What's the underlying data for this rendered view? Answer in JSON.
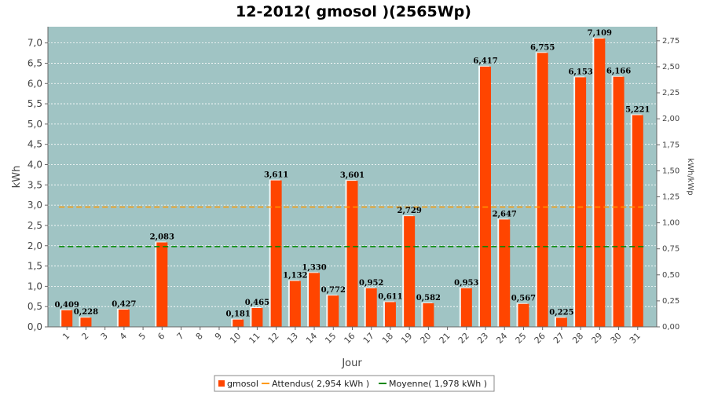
{
  "chart_data": {
    "type": "bar",
    "title": "12-2012( gmosol )(2565Wp)",
    "xlabel": "Jour",
    "ylabel": "kWh",
    "ylabel_right": "kWh/kWp",
    "categories": [
      "1",
      "2",
      "3",
      "4",
      "5",
      "6",
      "7",
      "8",
      "9",
      "10",
      "11",
      "12",
      "13",
      "14",
      "15",
      "16",
      "17",
      "18",
      "19",
      "20",
      "21",
      "22",
      "23",
      "24",
      "25",
      "26",
      "27",
      "28",
      "29",
      "30",
      "31"
    ],
    "series": [
      {
        "name": "gmosol",
        "color": "#ff4500",
        "values": [
          0.409,
          0.228,
          null,
          0.427,
          null,
          2.083,
          null,
          null,
          null,
          0.181,
          0.465,
          3.611,
          1.132,
          1.33,
          0.772,
          3.601,
          0.952,
          0.611,
          2.729,
          0.582,
          null,
          0.953,
          6.417,
          2.647,
          0.567,
          6.755,
          0.225,
          6.153,
          7.109,
          6.166,
          5.221
        ],
        "labels": [
          "0,409",
          "0,228",
          "",
          "0,427",
          "",
          "2,083",
          "",
          "",
          "",
          "0,181",
          "0,465",
          "3,611",
          "1,132",
          "1,330",
          "0,772",
          "3,601",
          "0,952",
          "0,611",
          "2,729",
          "0,582",
          "",
          "0,953",
          "6,417",
          "2,647",
          "0,567",
          "6,755",
          "0,225",
          "6,153",
          "7,109",
          "6,166",
          "5,221"
        ]
      }
    ],
    "reference_lines": [
      {
        "name": "Attendus( 2,954 kWh )",
        "value": 2.954,
        "color": "#ff9900"
      },
      {
        "name": "Moyenne( 1,978 kWh )",
        "value": 1.978,
        "color": "#008800"
      }
    ],
    "ylim": [
      0,
      7.4
    ],
    "yticks": [
      0.0,
      0.5,
      1.0,
      1.5,
      2.0,
      2.5,
      3.0,
      3.5,
      4.0,
      4.5,
      5.0,
      5.5,
      6.0,
      6.5,
      7.0
    ],
    "ytick_labels": [
      "0,0",
      "0,5",
      "1,0",
      "1,5",
      "2,0",
      "2,5",
      "3,0",
      "3,5",
      "4,0",
      "4,5",
      "5,0",
      "5,5",
      "6,0",
      "6,5",
      "7,0"
    ],
    "ylim_right": [
      0,
      2.885
    ],
    "yticks_right": [
      0.0,
      0.25,
      0.5,
      0.75,
      1.0,
      1.25,
      1.5,
      1.75,
      2.0,
      2.25,
      2.5,
      2.75
    ],
    "ytick_labels_right": [
      "0,00",
      "0,25",
      "0,50",
      "0,75",
      "1,00",
      "1,25",
      "1,50",
      "1,75",
      "2,00",
      "2,25",
      "2,50",
      "2,75"
    ],
    "grid": true,
    "legend_position": "bottom",
    "colors": {
      "plot_bg": "#a0c4c4",
      "grid": "#ffffff",
      "bar": "#ff4500",
      "bar_shadow": "#ffffff"
    }
  }
}
